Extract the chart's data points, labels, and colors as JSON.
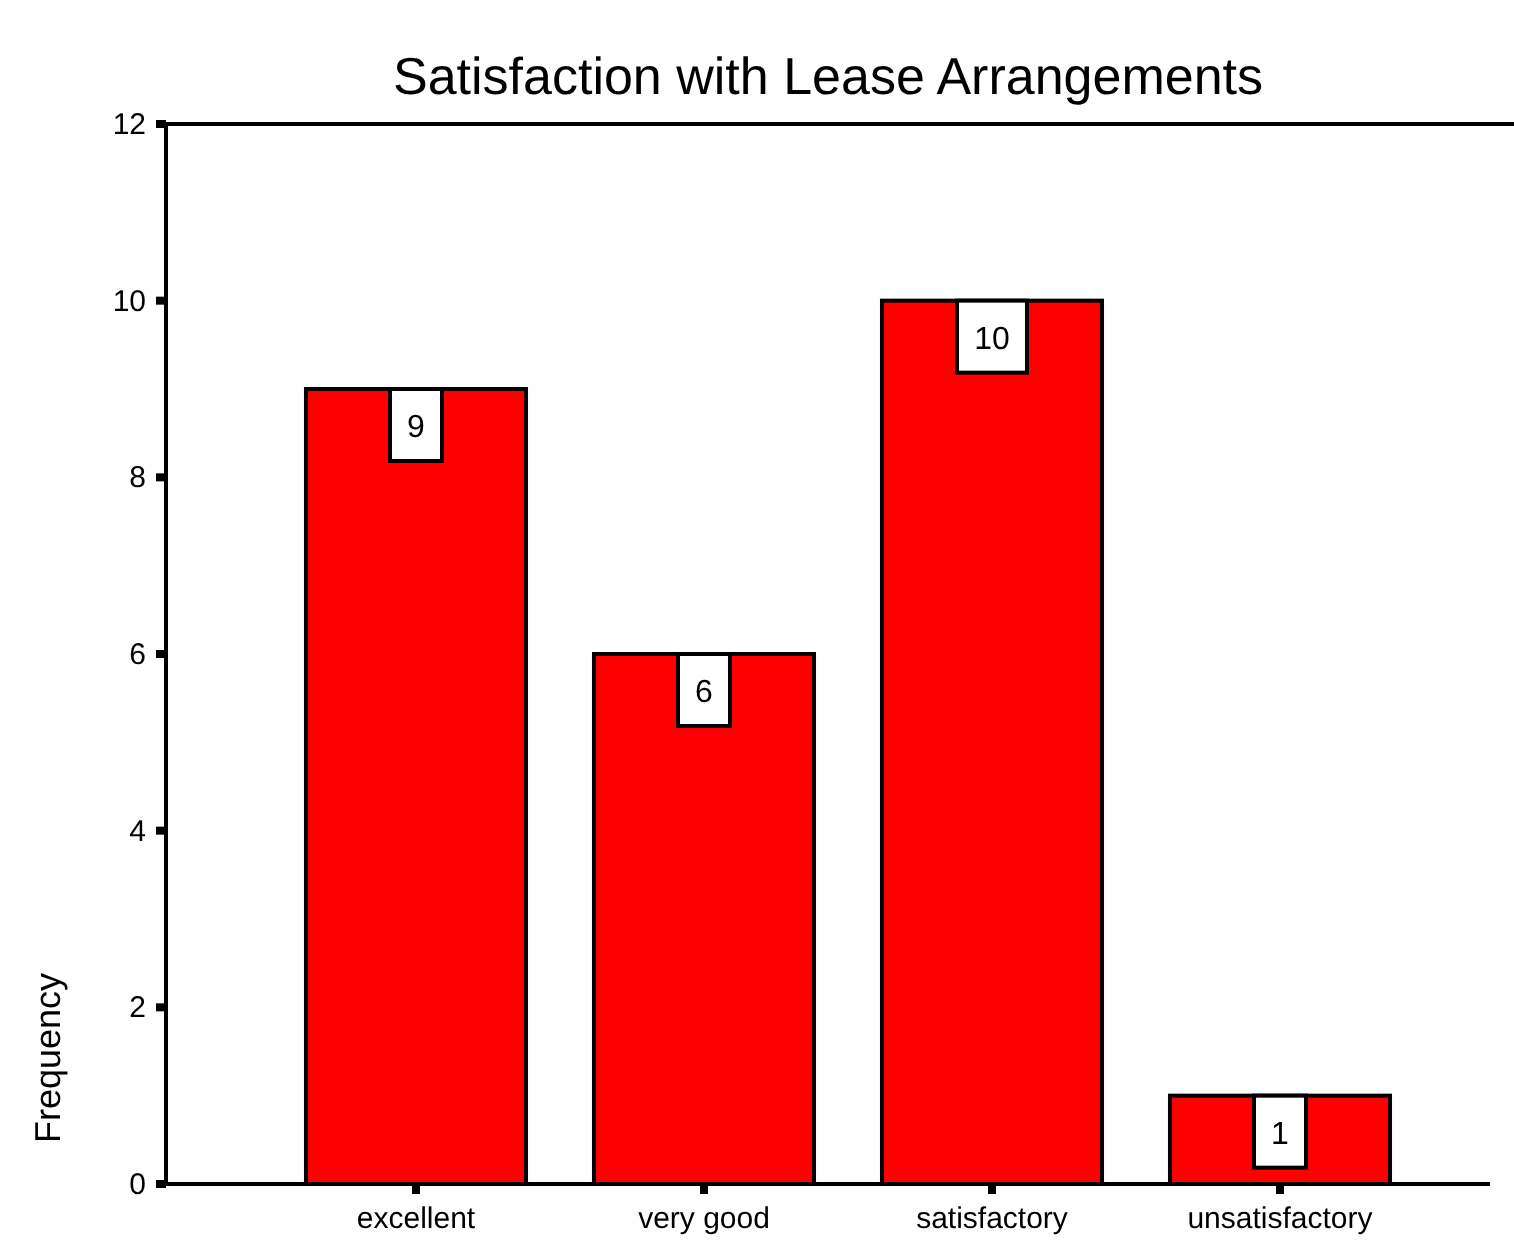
{
  "chart_data": {
    "type": "bar",
    "title": "Satisfaction with Lease Arrangements",
    "ylabel": "Frequency",
    "categories": [
      "excellent",
      "very good",
      "satisfactory",
      "unsatisfactory"
    ],
    "values": [
      9,
      6,
      10,
      1
    ],
    "color": "#ff0000",
    "ylim": [
      0,
      12
    ],
    "yticks": [
      0,
      2,
      4,
      6,
      8,
      10,
      12
    ],
    "data_labels": true
  }
}
